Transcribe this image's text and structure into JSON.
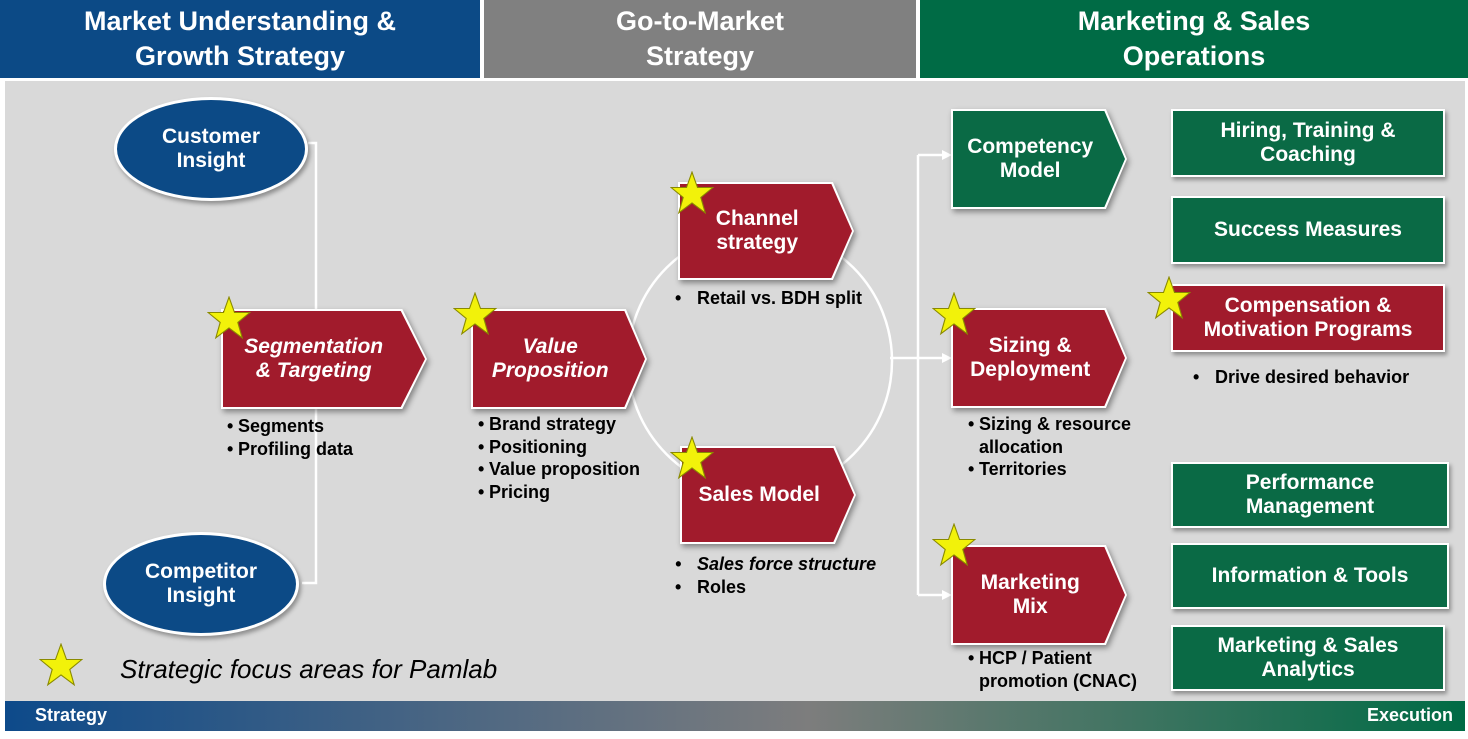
{
  "headers": {
    "market": "Market Understanding &\nGrowth Strategy",
    "gtm": "Go-to-Market\nStrategy",
    "ops": "Marketing & Sales\nOperations"
  },
  "colors": {
    "blue": "#0c4a86",
    "gray": "#808080",
    "green": "#0a6a45",
    "red": "#a11b2c",
    "star": "#f2f20a"
  },
  "ovals": {
    "customer": "Customer\nInsight",
    "competitor": "Competitor\nInsight"
  },
  "chevrons": {
    "segmentation": "Segmentation\n& Targeting",
    "value": "Value\nProposition",
    "channel": "Channel\nstrategy",
    "sales_model": "Sales Model",
    "competency": "Competency\nModel",
    "sizing": "Sizing &\nDeployment",
    "marketing_mix": "Marketing\nMix"
  },
  "bullets": {
    "segmentation": [
      "Segments",
      "Profiling data"
    ],
    "value": [
      "Brand strategy",
      "Positioning",
      "Value proposition",
      "Pricing"
    ],
    "channel": [
      "Retail vs. BDH split"
    ],
    "sales_model": [
      "Sales force structure",
      "Roles"
    ],
    "sizing": [
      "Sizing & resource allocation",
      "Territories"
    ],
    "marketing_mix": [
      "HCP / Patient promotion (CNAC)"
    ],
    "compensation": [
      "Drive desired behavior"
    ]
  },
  "boxes": {
    "hiring": "Hiring, Training &\nCoaching",
    "success": "Success Measures",
    "compensation": "Compensation &\nMotivation Programs",
    "performance": "Performance\nManagement",
    "info_tools": "Information & Tools",
    "analytics": "Marketing & Sales\nAnalytics"
  },
  "legend": {
    "text": "Strategic focus areas for Pamlab",
    "icon": "star-icon"
  },
  "footer": {
    "left": "Strategy",
    "right": "Execution"
  }
}
